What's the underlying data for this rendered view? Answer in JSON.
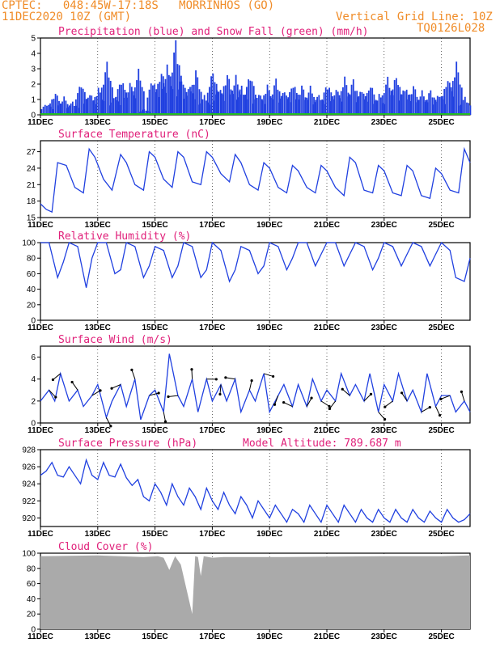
{
  "header": {
    "line1": "CPTEC:   048:45W-17:18S   MORRINHOS (GO)",
    "line2": "11DEC2020 10Z (GMT)",
    "grid_note": "Vertical Grid Line: 10Z",
    "code": "TQ0126L028"
  },
  "x_labels": [
    "11DEC",
    "13DEC",
    "15DEC",
    "17DEC",
    "19DEC",
    "21DEC",
    "23DEC",
    "25DEC"
  ],
  "panels": [
    {
      "key": "precip",
      "title": "Precipitation (blue) and Snow Fall (green) (mm/h)",
      "yticks": [
        "0",
        "1",
        "2",
        "3",
        "4",
        "5"
      ]
    },
    {
      "key": "temp",
      "title": "Surface Temperature (nC)",
      "yticks": [
        "15",
        "18",
        "21",
        "24",
        "27"
      ]
    },
    {
      "key": "rh",
      "title": "Relative Humidity (%)",
      "yticks": [
        "0",
        "20",
        "40",
        "60",
        "80",
        "100"
      ]
    },
    {
      "key": "wind",
      "title": "Surface Wind (m/s)",
      "yticks": [
        "0",
        "2",
        "4",
        "6"
      ]
    },
    {
      "key": "pres",
      "title": "Surface Pressure (hPa)",
      "extra": "Model Altitude: 789.687 m",
      "yticks": [
        "920",
        "922",
        "924",
        "926",
        "928"
      ]
    },
    {
      "key": "cloud",
      "title": "Cloud Cover (%)",
      "yticks": [
        "0",
        "20",
        "40",
        "60",
        "80",
        "100"
      ]
    }
  ],
  "colors": {
    "header": "#f08c28",
    "title": "#e0207a",
    "line": "#2040e0",
    "snow": "#22bb22",
    "cloud": "#aaaaaa"
  },
  "chart_data": [
    {
      "type": "bar",
      "name": "precip",
      "x_days": [
        0.2,
        0.5,
        0.8,
        1.1,
        1.4,
        1.7,
        2.0,
        2.3,
        2.6,
        2.8,
        3.1,
        3.4,
        3.6,
        3.9,
        4.2,
        4.4,
        4.7,
        4.9,
        5.2,
        5.4,
        5.7,
        6.0,
        6.2,
        6.5,
        6.8,
        7.0,
        7.3,
        7.6,
        7.9,
        8.2,
        8.5,
        8.8,
        9.1,
        9.4,
        9.7,
        10.0,
        10.3,
        10.6,
        10.9,
        11.2,
        11.5,
        11.8,
        12.1,
        12.4,
        12.7,
        13.0,
        13.3,
        13.6,
        13.9,
        14.2,
        14.5,
        14.8
      ],
      "values": [
        0.8,
        1.5,
        1.2,
        0.9,
        2.2,
        1.5,
        1.8,
        3.5,
        1.3,
        2.5,
        2.2,
        3.0,
        0.4,
        2.5,
        3.0,
        3.3,
        5.0,
        2.6,
        2.2,
        3.0,
        1.3,
        3.0,
        2.0,
        2.8,
        2.6,
        2.0,
        2.8,
        1.5,
        2.0,
        2.4,
        1.7,
        2.2,
        2.0,
        1.9,
        1.4,
        2.2,
        1.8,
        2.5,
        2.4,
        1.8,
        2.1,
        1.4,
        2.5,
        2.7,
        2.0,
        2.0,
        1.6,
        1.7,
        1.5,
        2.5,
        3.5,
        1.2
      ],
      "snow": 0,
      "ylim": [
        0,
        5
      ]
    },
    {
      "type": "line",
      "name": "temp",
      "x_days": [
        0.0,
        0.2,
        0.4,
        0.6,
        0.9,
        1.2,
        1.5,
        1.7,
        1.9,
        2.2,
        2.5,
        2.8,
        3.0,
        3.3,
        3.6,
        3.8,
        4.0,
        4.3,
        4.6,
        4.8,
        5.0,
        5.3,
        5.6,
        5.8,
        6.0,
        6.3,
        6.6,
        6.8,
        7.0,
        7.3,
        7.6,
        7.8,
        8.0,
        8.3,
        8.6,
        8.8,
        9.0,
        9.3,
        9.6,
        9.8,
        10.0,
        10.3,
        10.6,
        10.8,
        11.0,
        11.3,
        11.6,
        11.8,
        12.0,
        12.3,
        12.6,
        12.8,
        13.0,
        13.3,
        13.6,
        13.8,
        14.0,
        14.3,
        14.6,
        14.8,
        15.0
      ],
      "values": [
        17.5,
        16.5,
        16.0,
        25.0,
        24.5,
        20.5,
        19.5,
        27.5,
        26.0,
        22.0,
        20.0,
        26.5,
        25.0,
        21.0,
        20.0,
        27.0,
        26.0,
        22.0,
        20.5,
        27.0,
        26.0,
        21.5,
        21.0,
        27.0,
        26.0,
        23.0,
        21.5,
        26.5,
        25.0,
        21.0,
        20.0,
        25.0,
        24.0,
        20.5,
        19.5,
        24.5,
        23.5,
        20.5,
        19.5,
        24.5,
        23.5,
        20.5,
        19.0,
        26.0,
        25.0,
        20.0,
        19.5,
        24.5,
        23.5,
        19.5,
        19.0,
        24.5,
        23.5,
        19.0,
        18.5,
        24.0,
        23.0,
        20.0,
        19.5,
        27.5,
        25.0
      ],
      "ylim": [
        15,
        29
      ]
    },
    {
      "type": "line",
      "name": "rh",
      "x_days": [
        0.0,
        0.3,
        0.6,
        0.8,
        1.0,
        1.3,
        1.6,
        1.8,
        2.0,
        2.3,
        2.6,
        2.8,
        3.0,
        3.3,
        3.6,
        3.8,
        4.0,
        4.3,
        4.6,
        4.8,
        5.0,
        5.3,
        5.6,
        5.8,
        6.0,
        6.3,
        6.6,
        6.8,
        7.0,
        7.3,
        7.6,
        7.8,
        8.0,
        8.3,
        8.6,
        8.8,
        9.0,
        9.3,
        9.6,
        9.8,
        10.0,
        10.3,
        10.6,
        10.8,
        11.0,
        11.3,
        11.6,
        11.8,
        12.0,
        12.3,
        12.6,
        12.8,
        13.0,
        13.3,
        13.6,
        13.8,
        14.0,
        14.3,
        14.5,
        14.8,
        15.0
      ],
      "values": [
        100,
        100,
        55,
        75,
        100,
        95,
        42,
        80,
        100,
        100,
        60,
        65,
        100,
        95,
        55,
        70,
        95,
        90,
        55,
        70,
        100,
        95,
        55,
        65,
        100,
        90,
        50,
        65,
        95,
        90,
        60,
        70,
        100,
        95,
        65,
        80,
        100,
        100,
        70,
        85,
        100,
        100,
        70,
        85,
        100,
        95,
        65,
        80,
        100,
        95,
        70,
        85,
        100,
        95,
        70,
        85,
        100,
        90,
        55,
        50,
        80
      ],
      "ylim": [
        0,
        100
      ]
    },
    {
      "type": "line",
      "name": "wind",
      "x_days": [
        0.0,
        0.3,
        0.5,
        0.7,
        1.0,
        1.3,
        1.5,
        1.8,
        2.0,
        2.3,
        2.5,
        2.8,
        3.0,
        3.3,
        3.5,
        3.8,
        4.0,
        4.3,
        4.5,
        4.8,
        5.0,
        5.3,
        5.5,
        5.8,
        6.0,
        6.3,
        6.5,
        6.8,
        7.0,
        7.3,
        7.5,
        7.8,
        8.0,
        8.3,
        8.5,
        8.8,
        9.0,
        9.3,
        9.5,
        9.8,
        10.0,
        10.3,
        10.5,
        10.8,
        11.0,
        11.3,
        11.5,
        11.8,
        12.0,
        12.3,
        12.5,
        12.8,
        13.0,
        13.3,
        13.5,
        13.8,
        14.0,
        14.3,
        14.5,
        14.8,
        15.0
      ],
      "values": [
        2.0,
        3.0,
        2.0,
        4.5,
        2.0,
        3.0,
        1.5,
        2.5,
        3.5,
        0.5,
        2.0,
        3.5,
        1.5,
        4.0,
        0.3,
        2.5,
        3.0,
        1.0,
        6.3,
        2.5,
        1.5,
        4.0,
        1.0,
        4.0,
        2.0,
        3.5,
        2.0,
        4.0,
        1.0,
        3.0,
        2.0,
        4.5,
        1.0,
        2.5,
        3.5,
        1.5,
        3.5,
        1.5,
        4.0,
        2.0,
        3.0,
        2.0,
        4.5,
        2.5,
        3.5,
        2.0,
        4.5,
        1.0,
        3.5,
        2.0,
        4.5,
        2.0,
        3.0,
        1.0,
        4.5,
        1.5,
        2.5,
        2.5,
        1.0,
        2.0,
        1.0
      ],
      "ylim": [
        0,
        7
      ]
    },
    {
      "type": "line",
      "name": "pres",
      "x_days": [
        0.0,
        0.2,
        0.4,
        0.6,
        0.8,
        1.0,
        1.2,
        1.4,
        1.6,
        1.8,
        2.0,
        2.2,
        2.4,
        2.6,
        2.8,
        3.0,
        3.2,
        3.4,
        3.6,
        3.8,
        4.0,
        4.2,
        4.4,
        4.6,
        4.8,
        5.0,
        5.2,
        5.4,
        5.6,
        5.8,
        6.0,
        6.2,
        6.4,
        6.6,
        6.8,
        7.0,
        7.2,
        7.4,
        7.6,
        7.8,
        8.0,
        8.2,
        8.4,
        8.6,
        8.8,
        9.0,
        9.2,
        9.4,
        9.6,
        9.8,
        10.0,
        10.2,
        10.4,
        10.6,
        10.8,
        11.0,
        11.2,
        11.4,
        11.6,
        11.8,
        12.0,
        12.2,
        12.4,
        12.6,
        12.8,
        13.0,
        13.2,
        13.4,
        13.6,
        13.8,
        14.0,
        14.2,
        14.4,
        14.6,
        14.8,
        15.0
      ],
      "values": [
        925,
        925.5,
        926.5,
        925,
        924.8,
        926,
        925,
        924,
        926.8,
        925,
        924.5,
        926.5,
        925,
        924.8,
        926.3,
        924.7,
        923.8,
        924.5,
        922.5,
        922,
        924,
        923,
        921.5,
        924,
        922.5,
        921.5,
        923.5,
        922.5,
        921,
        923.5,
        922,
        921,
        923,
        921.5,
        920.5,
        922.5,
        921.5,
        920,
        922,
        921,
        920,
        921.5,
        920.5,
        919.5,
        921,
        920.5,
        919.5,
        921.5,
        920.5,
        919.5,
        921.5,
        920.5,
        919.5,
        921.5,
        920.5,
        919.5,
        921,
        920,
        919.5,
        921,
        920,
        919.5,
        921,
        920,
        919.5,
        921,
        920,
        919.5,
        920.8,
        920,
        919.5,
        921,
        920,
        919.5,
        919.8,
        920.5
      ],
      "ylim": [
        919,
        928
      ]
    },
    {
      "type": "area",
      "name": "cloud",
      "x_days": [
        0.0,
        2.0,
        3.6,
        4.1,
        4.3,
        4.5,
        4.7,
        4.9,
        5.3,
        5.4,
        5.5,
        5.6,
        5.7,
        6.0,
        6.4,
        8.5,
        12.0,
        14.0,
        15.0
      ],
      "values": [
        96,
        97,
        95,
        96,
        94,
        78,
        96,
        85,
        20,
        96,
        95,
        70,
        96,
        94,
        95,
        95,
        96,
        96,
        97
      ],
      "ylim": [
        0,
        100
      ]
    }
  ]
}
